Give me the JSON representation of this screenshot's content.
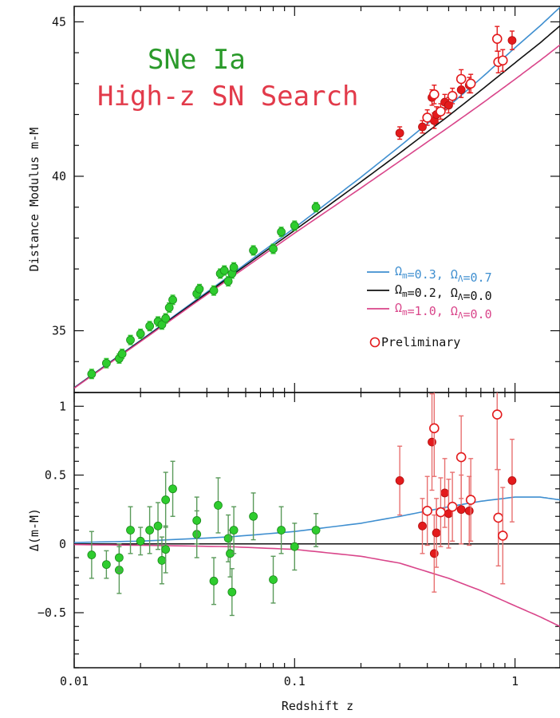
{
  "chart_data": [
    {
      "panel": "top",
      "type": "scatter",
      "title_lines": [
        {
          "text": "SNe Ia",
          "color": "#2a9a2a"
        },
        {
          "text": "High-z SN Search",
          "color": "#e23a4a"
        }
      ],
      "xlabel": "Redshift z",
      "ylabel": "Distance Modulus m-M",
      "x_scale": "log",
      "xlim": [
        0.01,
        1.6
      ],
      "ylim": [
        33.0,
        45.5
      ],
      "x_ticks": [
        {
          "v": 0.01,
          "label": "0.01"
        },
        {
          "v": 0.1,
          "label": "0.1"
        },
        {
          "v": 1,
          "label": "1"
        }
      ],
      "y_ticks": [
        {
          "v": 35,
          "label": "35"
        },
        {
          "v": 40,
          "label": "40"
        },
        {
          "v": 45,
          "label": "45"
        }
      ],
      "legend": {
        "position": "middle-right",
        "entries": [
          {
            "name": "Ω_m=0.3, Ω_Λ=0.7",
            "parts": [
              [
                "Ω",
                ""
              ],
              [
                "m",
                "sub"
              ],
              [
                "=0.3, Ω",
                ""
              ],
              [
                "Λ",
                "sub"
              ],
              [
                "=0.7",
                ""
              ]
            ],
            "color": "#3f8fd0"
          },
          {
            "name": "Ω_m=0.2, Ω_Λ=0.0",
            "parts": [
              [
                "Ω",
                ""
              ],
              [
                "m",
                "sub"
              ],
              [
                "=0.2, Ω",
                ""
              ],
              [
                "Λ",
                "sub"
              ],
              [
                "=0.0",
                ""
              ]
            ],
            "color": "#111111"
          },
          {
            "name": "Ω_m=1.0, Ω_Λ=0.0",
            "parts": [
              [
                "Ω",
                ""
              ],
              [
                "m",
                "sub"
              ],
              [
                "=1.0, Ω",
                ""
              ],
              [
                "Λ",
                "sub"
              ],
              [
                "=0.0",
                ""
              ]
            ],
            "color": "#d9458a"
          }
        ],
        "marker_note": "Preliminary"
      },
      "curves": [
        {
          "name": "Ω_m=0.3, Ω_Λ=0.7",
          "color": "#3f8fd0",
          "x": [
            0.01,
            0.02,
            0.05,
            0.1,
            0.2,
            0.3,
            0.5,
            0.7,
            1.0,
            1.3,
            1.6
          ],
          "y": [
            33.16,
            34.69,
            36.75,
            38.33,
            39.97,
            40.97,
            42.27,
            43.17,
            44.16,
            44.87,
            45.47
          ]
        },
        {
          "name": "Ω_m=0.2, Ω_Λ=0.0",
          "color": "#111111",
          "x": [
            0.01,
            0.02,
            0.05,
            0.1,
            0.2,
            0.3,
            0.5,
            0.7,
            1.0,
            1.3,
            1.6
          ],
          "y": [
            33.15,
            34.67,
            36.71,
            38.25,
            39.82,
            40.75,
            41.96,
            42.78,
            43.67,
            44.32,
            44.87
          ]
        },
        {
          "name": "Ω_m=1.0, Ω_Λ=0.0",
          "color": "#d9458a",
          "x": [
            0.01,
            0.02,
            0.05,
            0.1,
            0.2,
            0.3,
            0.5,
            0.7,
            1.0,
            1.3,
            1.6
          ],
          "y": [
            33.14,
            34.65,
            36.66,
            38.16,
            39.62,
            40.49,
            41.59,
            42.33,
            43.14,
            43.75,
            44.25
          ]
        }
      ],
      "series": [
        {
          "name": "SNe Ia",
          "color": "#2ecc2e",
          "edge": "#1b8a1b",
          "marker": "filled",
          "points": [
            [
              0.012,
              33.6,
              0.15
            ],
            [
              0.014,
              33.95,
              0.15
            ],
            [
              0.016,
              34.1,
              0.15
            ],
            [
              0.0165,
              34.25,
              0.15
            ],
            [
              0.018,
              34.7,
              0.15
            ],
            [
              0.02,
              34.9,
              0.15
            ],
            [
              0.022,
              35.15,
              0.15
            ],
            [
              0.024,
              35.3,
              0.15
            ],
            [
              0.025,
              35.2,
              0.15
            ],
            [
              0.026,
              35.4,
              0.15
            ],
            [
              0.027,
              35.75,
              0.15
            ],
            [
              0.028,
              36.0,
              0.15
            ],
            [
              0.036,
              36.2,
              0.15
            ],
            [
              0.037,
              36.35,
              0.15
            ],
            [
              0.043,
              36.3,
              0.15
            ],
            [
              0.046,
              36.85,
              0.15
            ],
            [
              0.048,
              36.95,
              0.15
            ],
            [
              0.05,
              36.6,
              0.15
            ],
            [
              0.052,
              36.85,
              0.15
            ],
            [
              0.053,
              37.05,
              0.15
            ],
            [
              0.065,
              37.6,
              0.15
            ],
            [
              0.08,
              37.65,
              0.15
            ],
            [
              0.087,
              38.2,
              0.15
            ],
            [
              0.1,
              38.4,
              0.15
            ],
            [
              0.125,
              39.0,
              0.15
            ]
          ]
        },
        {
          "name": "High-z SN Search",
          "color": "#e31a1c",
          "edge": "#b01010",
          "marker": "filled",
          "points": [
            [
              0.3,
              41.4,
              0.2
            ],
            [
              0.38,
              41.6,
              0.2
            ],
            [
              0.42,
              42.55,
              0.25
            ],
            [
              0.43,
              41.8,
              0.25
            ],
            [
              0.44,
              42.0,
              0.25
            ],
            [
              0.48,
              42.4,
              0.25
            ],
            [
              0.5,
              42.3,
              0.25
            ],
            [
              0.57,
              42.8,
              0.25
            ],
            [
              0.62,
              42.95,
              0.25
            ],
            [
              0.97,
              44.4,
              0.3
            ]
          ]
        },
        {
          "name": "Preliminary",
          "color": "#e31a1c",
          "edge": "#e31a1c",
          "marker": "open",
          "points": [
            [
              0.4,
              41.9,
              0.25
            ],
            [
              0.43,
              42.65,
              0.3
            ],
            [
              0.46,
              42.1,
              0.25
            ],
            [
              0.52,
              42.6,
              0.25
            ],
            [
              0.57,
              43.15,
              0.3
            ],
            [
              0.63,
              43.0,
              0.3
            ],
            [
              0.83,
              44.45,
              0.4
            ],
            [
              0.84,
              43.7,
              0.35
            ],
            [
              0.88,
              43.75,
              0.35
            ]
          ]
        }
      ]
    },
    {
      "panel": "bottom",
      "type": "scatter",
      "xlabel": "Redshift z",
      "ylabel": "Δ(m-M)",
      "x_scale": "log",
      "xlim": [
        0.01,
        1.6
      ],
      "ylim": [
        -0.9,
        1.1
      ],
      "x_ticks": [
        {
          "v": 0.01,
          "label": "0.01"
        },
        {
          "v": 0.1,
          "label": "0.1"
        },
        {
          "v": 1,
          "label": "1"
        }
      ],
      "y_ticks": [
        {
          "v": -0.5,
          "label": "−0.5"
        },
        {
          "v": 0,
          "label": "0"
        },
        {
          "v": 0.5,
          "label": "0.5"
        },
        {
          "v": 1,
          "label": "1"
        }
      ],
      "reference_line": {
        "y": 0,
        "color": "#111111"
      },
      "curves": [
        {
          "name": "Ω_m=0.3, Ω_Λ=0.7",
          "color": "#3f8fd0",
          "x": [
            0.01,
            0.02,
            0.05,
            0.1,
            0.2,
            0.3,
            0.5,
            0.7,
            1.0,
            1.3,
            1.6
          ],
          "y": [
            0.01,
            0.02,
            0.05,
            0.09,
            0.15,
            0.2,
            0.27,
            0.31,
            0.34,
            0.34,
            0.32
          ]
        },
        {
          "name": "Ω_m=1.0, Ω_Λ=0.0",
          "color": "#d9458a",
          "x": [
            0.01,
            0.02,
            0.05,
            0.1,
            0.2,
            0.3,
            0.5,
            0.7,
            1.0,
            1.3,
            1.6
          ],
          "y": [
            -0.005,
            -0.01,
            -0.02,
            -0.04,
            -0.09,
            -0.14,
            -0.25,
            -0.34,
            -0.45,
            -0.53,
            -0.6
          ]
        }
      ],
      "series": [
        {
          "name": "SNe Ia",
          "color": "#2ecc2e",
          "edge": "#1b8a1b",
          "err_color": "#5a9a5a",
          "marker": "filled",
          "points": [
            [
              0.012,
              -0.08,
              0.17
            ],
            [
              0.014,
              -0.15,
              0.1
            ],
            [
              0.016,
              -0.19,
              0.17
            ],
            [
              0.016,
              -0.1,
              0.1
            ],
            [
              0.018,
              0.1,
              0.17
            ],
            [
              0.02,
              0.02,
              0.1
            ],
            [
              0.022,
              0.1,
              0.17
            ],
            [
              0.024,
              0.13,
              0.17
            ],
            [
              0.025,
              -0.12,
              0.17
            ],
            [
              0.026,
              0.32,
              0.2
            ],
            [
              0.026,
              -0.04,
              0.17
            ],
            [
              0.028,
              0.4,
              0.2
            ],
            [
              0.036,
              0.07,
              0.17
            ],
            [
              0.036,
              0.17,
              0.17
            ],
            [
              0.043,
              -0.27,
              0.17
            ],
            [
              0.045,
              0.28,
              0.2
            ],
            [
              0.05,
              0.04,
              0.17
            ],
            [
              0.051,
              -0.07,
              0.17
            ],
            [
              0.052,
              -0.35,
              0.17
            ],
            [
              0.053,
              0.1,
              0.17
            ],
            [
              0.065,
              0.2,
              0.17
            ],
            [
              0.08,
              -0.26,
              0.17
            ],
            [
              0.087,
              0.1,
              0.17
            ],
            [
              0.1,
              -0.02,
              0.17
            ],
            [
              0.125,
              0.1,
              0.12
            ]
          ]
        },
        {
          "name": "High-z SN Search",
          "color": "#e31a1c",
          "edge": "#b01010",
          "err_color": "#e87070",
          "marker": "filled",
          "points": [
            [
              0.3,
              0.46,
              0.25
            ],
            [
              0.38,
              0.13,
              0.2
            ],
            [
              0.42,
              0.74,
              0.35
            ],
            [
              0.43,
              -0.07,
              0.28
            ],
            [
              0.44,
              0.08,
              0.25
            ],
            [
              0.48,
              0.37,
              0.25
            ],
            [
              0.5,
              0.22,
              0.25
            ],
            [
              0.57,
              0.25,
              0.25
            ],
            [
              0.62,
              0.24,
              0.25
            ],
            [
              0.97,
              0.46,
              0.3
            ]
          ]
        },
        {
          "name": "Preliminary",
          "color": "#e31a1c",
          "edge": "#e31a1c",
          "err_color": "#e87070",
          "marker": "open",
          "points": [
            [
              0.4,
              0.24,
              0.25
            ],
            [
              0.43,
              0.84,
              0.35
            ],
            [
              0.46,
              0.23,
              0.25
            ],
            [
              0.52,
              0.27,
              0.25
            ],
            [
              0.57,
              0.63,
              0.3
            ],
            [
              0.63,
              0.32,
              0.3
            ],
            [
              0.83,
              0.94,
              0.4
            ],
            [
              0.84,
              0.19,
              0.35
            ],
            [
              0.88,
              0.06,
              0.35
            ]
          ]
        }
      ]
    }
  ]
}
